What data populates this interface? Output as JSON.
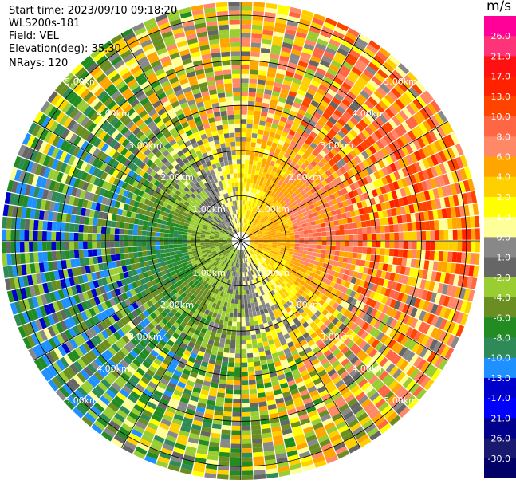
{
  "header": {
    "start_time": "Start time: 2023/09/10 09:18:20",
    "instrument": "WLS200s-181",
    "field": "Field: VEL",
    "elevation": "Elevation(deg): 35.30",
    "nrays": "NRays: 120"
  },
  "chart_data": {
    "type": "ppi",
    "field": "VEL",
    "units": "m/s",
    "n_rays": 120,
    "max_range_km": 5.3,
    "range_rings_km": [
      1.0,
      2.0,
      3.0,
      4.0,
      5.0
    ],
    "ring_labels": [
      "1.00km",
      "2.00km",
      "3.00km",
      "4.00km",
      "5.00km"
    ],
    "colorbar": {
      "title": "m/s",
      "tick_labels": [
        "26.0",
        "21.0",
        "17.0",
        "13.0",
        "10.0",
        "8.0",
        "6.0",
        "4.0",
        "2.0",
        "1.0",
        "0.0",
        "-1.0",
        "-2.0",
        "-4.0",
        "-6.0",
        "-8.0",
        "-10.0",
        "-13.0",
        "-17.0",
        "-21.0",
        "-26.0",
        "-30.0"
      ],
      "colors": [
        "#ff0099",
        "#ff3377",
        "#ff1111",
        "#ff2200",
        "#ff4400",
        "#ff6644",
        "#ff8866",
        "#ffa500",
        "#ffd000",
        "#ffff00",
        "#ffff99",
        "#888888",
        "#666666",
        "#9acd32",
        "#6b8e23",
        "#228b22",
        "#2e8b57",
        "#1e90ff",
        "#0000cd",
        "#0000ff",
        "#00008b",
        "#191970",
        "#000066"
      ]
    },
    "sectors": [
      {
        "azimuth_deg": 0,
        "mean_velocity_ms": 2.0
      },
      {
        "azimuth_deg": 45,
        "mean_velocity_ms": 6.0
      },
      {
        "azimuth_deg": 90,
        "mean_velocity_ms": 8.0
      },
      {
        "azimuth_deg": 135,
        "mean_velocity_ms": 2.0
      },
      {
        "azimuth_deg": 180,
        "mean_velocity_ms": -2.0
      },
      {
        "azimuth_deg": 225,
        "mean_velocity_ms": -6.0
      },
      {
        "azimuth_deg": 270,
        "mean_velocity_ms": -8.0
      },
      {
        "azimuth_deg": 315,
        "mean_velocity_ms": -2.0
      }
    ]
  }
}
